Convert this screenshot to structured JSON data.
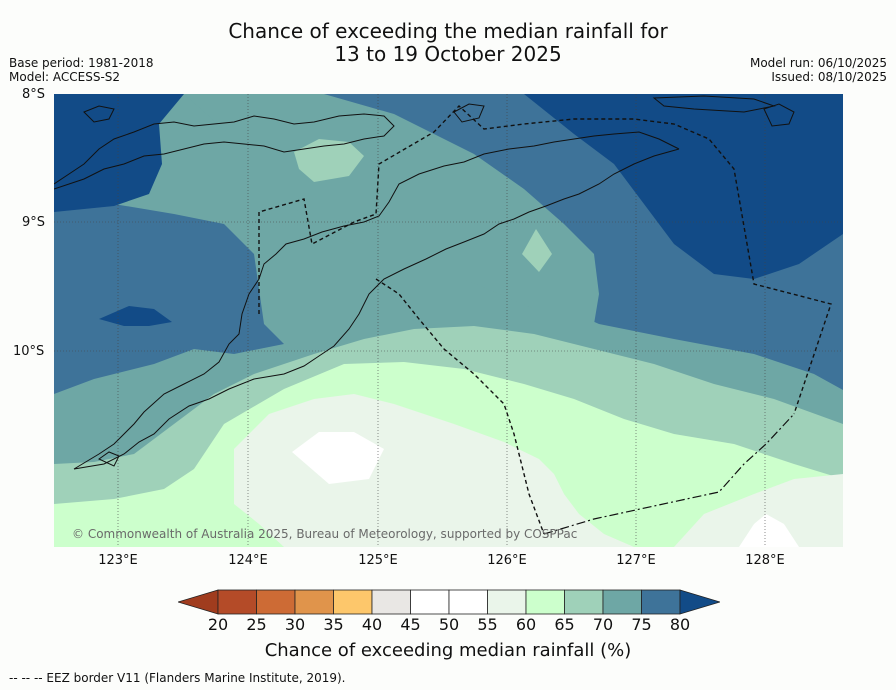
{
  "title": {
    "line1": "Chance of exceeding the median rainfall for",
    "line2": "13 to 19 October 2025"
  },
  "meta": {
    "base_period": "Base period: 1981-2018",
    "model": "Model: ACCESS-S2",
    "model_run": "Model run: 06/10/2025",
    "issued": "Issued: 08/10/2025"
  },
  "axes": {
    "lat_labels": [
      "8°S",
      "9°S",
      "10°S"
    ],
    "lon_labels": [
      "123°E",
      "124°E",
      "125°E",
      "126°E",
      "127°E",
      "128°E"
    ]
  },
  "copyright": "© Commonwealth of Australia 2025, Bureau of Meteorology, supported by COSPPac",
  "colorbar": {
    "ticks": [
      "20",
      "25",
      "30",
      "35",
      "40",
      "45",
      "50",
      "55",
      "60",
      "65",
      "70",
      "75",
      "80"
    ],
    "colors": [
      "#a03c1e",
      "#b44b28",
      "#cd6b35",
      "#e0944b",
      "#fdc76b",
      "#e9e7e4",
      "#ffffff",
      "#ffffff",
      "#eaf5ea",
      "#ccffcc",
      "#9fd1b9",
      "#6ea7a5",
      "#3e7399",
      "#124b87"
    ],
    "title": "Chance of exceeding median rainfall (%)"
  },
  "footnote": "--  --  -- EEZ border V11 (Flanders Marine Institute, 2019).",
  "palette": {
    "c55_60": "#eaf5ea",
    "c45_55": "#ffffff",
    "c60_65": "#ccffcc",
    "c65_70": "#9fd1b9",
    "c70_75": "#6ea7a5",
    "c75_80": "#3e7399",
    "c80": "#124b87"
  }
}
